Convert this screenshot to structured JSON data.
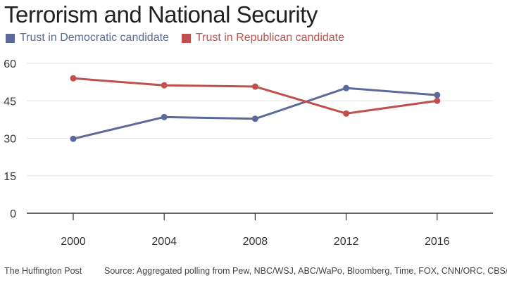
{
  "chart_data": {
    "type": "line",
    "title": "Terrorism and National Security",
    "categories": [
      "2000",
      "2004",
      "2008",
      "2012",
      "2016"
    ],
    "series": [
      {
        "name": "Trust in Democratic candidate",
        "color": "#5b6a9b",
        "values": [
          29.8,
          38.5,
          37.8,
          50.1,
          47.3
        ]
      },
      {
        "name": "Trust in Republican candidate",
        "color": "#c0504d",
        "values": [
          54.0,
          51.2,
          50.7,
          39.9,
          45.0
        ]
      }
    ],
    "yticks": [
      "0",
      "15",
      "30",
      "45",
      "60"
    ],
    "ylim": [
      0,
      60
    ],
    "grid": true,
    "legend_position": "top-left"
  },
  "footer": {
    "left": "The Huffington Post",
    "right": "Source: Aggregated polling from Pew, NBC/WSJ, ABC/WaPo, Bloomberg, Time, FOX, CNN/ORC, CBS/NYT"
  }
}
